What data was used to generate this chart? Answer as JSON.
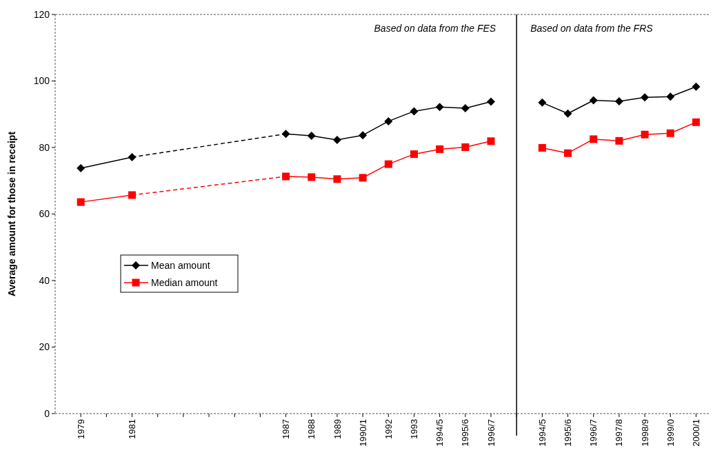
{
  "chart_data": {
    "type": "line",
    "ylabel": "Average amount for those in receipt",
    "categories": [
      "1979",
      null,
      "1981",
      null,
      null,
      null,
      null,
      null,
      "1987",
      "1988",
      "1989",
      "1990/1",
      "1992",
      "1993",
      "1994/5",
      "1995/6",
      "1996/7",
      null,
      "1994/5",
      "1995/6",
      "1996/7",
      "1997/8",
      "1998/9",
      "1999/0",
      "2000/1"
    ],
    "series": [
      {
        "name": "Mean amount",
        "color": "#000000",
        "marker": "diamond",
        "values": [
          73.8,
          null,
          77.1,
          null,
          null,
          null,
          null,
          null,
          null,
          null,
          null,
          null,
          null,
          null,
          null,
          null,
          null,
          null,
          null,
          null,
          null,
          null,
          null,
          null,
          null
        ]
      },
      {
        "name": "Median amount",
        "color": "#ff0000",
        "marker": "square",
        "values": [
          63.6,
          null,
          65.7,
          null,
          null,
          null,
          null,
          null,
          null,
          null,
          null,
          null,
          null,
          null,
          null,
          null,
          null,
          null,
          null,
          null,
          null,
          null,
          null,
          null,
          null
        ]
      },
      {
        "color": "#000000",
        "line_style": "dashed",
        "values": [
          null,
          null,
          77.1,
          null,
          null,
          null,
          null,
          null,
          84.1,
          null,
          null,
          null,
          null,
          null,
          null,
          null,
          null,
          null,
          null,
          null,
          null,
          null,
          null,
          null,
          null
        ]
      },
      {
        "color": "#ff0000",
        "line_style": "dashed",
        "values": [
          null,
          null,
          65.7,
          null,
          null,
          null,
          null,
          null,
          71.3,
          null,
          null,
          null,
          null,
          null,
          null,
          null,
          null,
          null,
          null,
          null,
          null,
          null,
          null,
          null,
          null
        ]
      },
      {
        "color": "#000000",
        "marker": "diamond",
        "values": [
          null,
          null,
          null,
          null,
          null,
          null,
          null,
          null,
          84.1,
          83.5,
          82.3,
          83.7,
          87.9,
          90.9,
          92.2,
          91.8,
          93.8,
          null,
          null,
          null,
          null,
          null,
          null,
          null,
          null
        ]
      },
      {
        "color": "#ff0000",
        "marker": "square",
        "values": [
          null,
          null,
          null,
          null,
          null,
          null,
          null,
          null,
          71.3,
          71.1,
          70.5,
          70.9,
          75.0,
          78.0,
          79.5,
          80.1,
          81.9,
          null,
          null,
          null,
          null,
          null,
          null,
          null,
          null
        ]
      },
      {
        "color": "#000000",
        "marker": "diamond",
        "values": [
          null,
          null,
          null,
          null,
          null,
          null,
          null,
          null,
          null,
          null,
          null,
          null,
          null,
          null,
          null,
          null,
          null,
          null,
          93.5,
          90.2,
          94.2,
          93.9,
          95.1,
          95.3,
          98.3
        ]
      },
      {
        "color": "#ff0000",
        "marker": "square",
        "values": [
          null,
          null,
          null,
          null,
          null,
          null,
          null,
          null,
          null,
          null,
          null,
          null,
          null,
          null,
          null,
          null,
          null,
          null,
          79.9,
          78.3,
          82.5,
          82.0,
          83.9,
          84.3,
          87.6
        ]
      }
    ],
    "ylim": [
      0,
      120
    ],
    "yticks": [
      0,
      20,
      40,
      60,
      80,
      100,
      120
    ],
    "annotations": [
      "Based on data from the FES",
      "Based on data from the FRS"
    ],
    "legend": "left",
    "line_style": "solid"
  }
}
